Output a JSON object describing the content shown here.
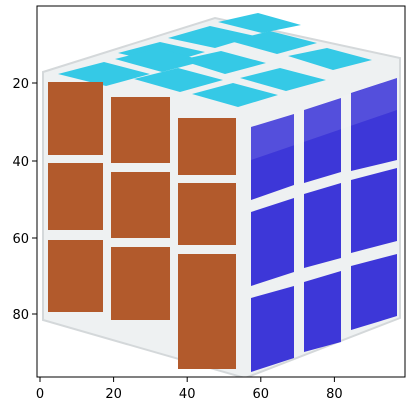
{
  "image": {
    "subject": "rubiks-cube",
    "xlim": [
      0,
      100
    ],
    "ylim": [
      100,
      0
    ],
    "x_ticks": [
      0,
      20,
      40,
      60,
      80
    ],
    "y_ticks": [
      20,
      40,
      60,
      80
    ],
    "grid": false
  },
  "colors": {
    "top_face": "#35c9e6",
    "front_face": "#b25a2c",
    "right_face": "#3d37d8",
    "sticker_gap": "#f2f5f7",
    "background": "#ffffff"
  }
}
